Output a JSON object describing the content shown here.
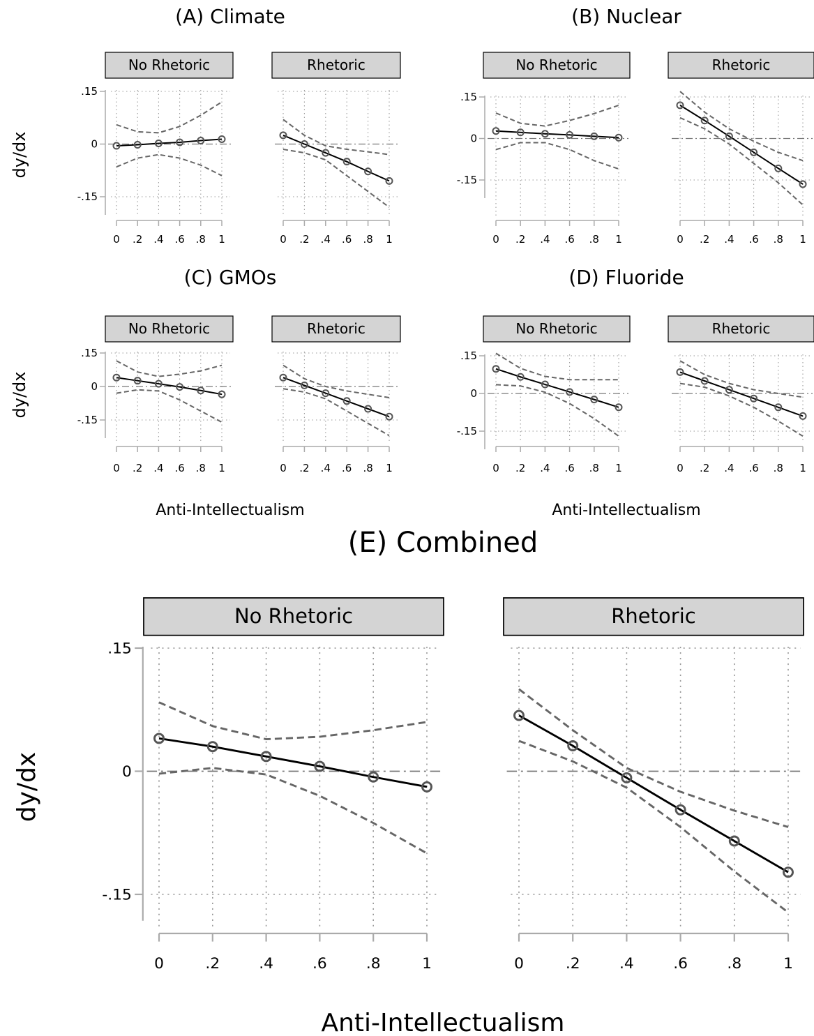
{
  "figure": {
    "panels": [
      {
        "title": "(A) Climate"
      },
      {
        "title": "(B) Nuclear"
      },
      {
        "title": "(C) GMOs"
      },
      {
        "title": "(D) Fluoride"
      },
      {
        "title": "(E) Combined"
      }
    ],
    "ylabel": "dy/dx",
    "xlabel": "Anti-Intellectualism",
    "facet_labels": [
      "No Rhetoric",
      "Rhetoric"
    ],
    "x_tick_labels": [
      "0",
      ".2",
      ".4",
      ".6",
      ".8",
      "1"
    ],
    "y_tick_labels": [
      ".15",
      "0",
      "-.15"
    ]
  },
  "chart_data": [
    {
      "type": "line",
      "title": "(A) Climate",
      "ylabel": "dy/dx",
      "x": [
        0,
        0.2,
        0.4,
        0.6,
        0.8,
        1
      ],
      "ylim": [
        -0.15,
        0.15
      ],
      "facets": [
        {
          "name": "No Rhetoric",
          "estimate": [
            -0.005,
            -0.002,
            0.002,
            0.005,
            0.01,
            0.014
          ],
          "ci_low": [
            -0.065,
            -0.04,
            -0.03,
            -0.04,
            -0.06,
            -0.09
          ],
          "ci_high": [
            0.055,
            0.035,
            0.032,
            0.05,
            0.082,
            0.12
          ]
        },
        {
          "name": "Rhetoric",
          "estimate": [
            0.025,
            0.0,
            -0.025,
            -0.05,
            -0.078,
            -0.105
          ],
          "ci_low": [
            -0.015,
            -0.025,
            -0.045,
            -0.09,
            -0.135,
            -0.18
          ],
          "ci_high": [
            0.07,
            0.025,
            -0.005,
            -0.015,
            -0.022,
            -0.03
          ]
        }
      ]
    },
    {
      "type": "line",
      "title": "(B) Nuclear",
      "ylabel": "dy/dx",
      "x": [
        0,
        0.2,
        0.4,
        0.6,
        0.8,
        1
      ],
      "ylim": [
        -0.15,
        0.15
      ],
      "facets": [
        {
          "name": "No Rhetoric",
          "estimate": [
            0.027,
            0.022,
            0.017,
            0.013,
            0.008,
            0.003
          ],
          "ci_low": [
            -0.04,
            -0.015,
            -0.015,
            -0.04,
            -0.08,
            -0.11
          ],
          "ci_high": [
            0.092,
            0.055,
            0.045,
            0.065,
            0.09,
            0.12
          ]
        },
        {
          "name": "Rhetoric",
          "estimate": [
            0.12,
            0.065,
            0.008,
            -0.05,
            -0.108,
            -0.165
          ],
          "ci_low": [
            0.075,
            0.035,
            -0.02,
            -0.09,
            -0.16,
            -0.24
          ],
          "ci_high": [
            0.17,
            0.095,
            0.035,
            -0.01,
            -0.05,
            -0.08
          ]
        }
      ]
    },
    {
      "type": "line",
      "title": "(C) GMOs",
      "ylabel": "dy/dx",
      "x": [
        0,
        0.2,
        0.4,
        0.6,
        0.8,
        1
      ],
      "ylim": [
        -0.15,
        0.15
      ],
      "facets": [
        {
          "name": "No Rhetoric",
          "estimate": [
            0.04,
            0.026,
            0.012,
            -0.002,
            -0.018,
            -0.035
          ],
          "ci_low": [
            -0.03,
            -0.015,
            -0.02,
            -0.06,
            -0.11,
            -0.16
          ],
          "ci_high": [
            0.115,
            0.065,
            0.045,
            0.055,
            0.07,
            0.095
          ]
        },
        {
          "name": "Rhetoric",
          "estimate": [
            0.04,
            0.005,
            -0.03,
            -0.065,
            -0.1,
            -0.135
          ],
          "ci_low": [
            -0.01,
            -0.025,
            -0.055,
            -0.11,
            -0.165,
            -0.22
          ],
          "ci_high": [
            0.095,
            0.035,
            0.0,
            -0.02,
            -0.035,
            -0.05
          ]
        }
      ]
    },
    {
      "type": "line",
      "title": "(D) Fluoride",
      "ylabel": "dy/dx",
      "x": [
        0,
        0.2,
        0.4,
        0.6,
        0.8,
        1
      ],
      "ylim": [
        -0.15,
        0.15
      ],
      "facets": [
        {
          "name": "No Rhetoric",
          "estimate": [
            0.098,
            0.066,
            0.036,
            0.006,
            -0.024,
            -0.055
          ],
          "ci_low": [
            0.035,
            0.03,
            0.005,
            -0.04,
            -0.1,
            -0.17
          ],
          "ci_high": [
            0.16,
            0.1,
            0.068,
            0.055,
            0.055,
            0.055
          ]
        },
        {
          "name": "Rhetoric",
          "estimate": [
            0.085,
            0.05,
            0.015,
            -0.02,
            -0.055,
            -0.09
          ],
          "ci_low": [
            0.04,
            0.025,
            -0.01,
            -0.055,
            -0.11,
            -0.17
          ],
          "ci_high": [
            0.13,
            0.075,
            0.04,
            0.015,
            0.0,
            -0.015
          ]
        }
      ]
    },
    {
      "type": "line",
      "title": "(E) Combined",
      "ylabel": "dy/dx",
      "xlabel": "Anti-Intellectualism",
      "x": [
        0,
        0.2,
        0.4,
        0.6,
        0.8,
        1
      ],
      "ylim": [
        -0.15,
        0.15
      ],
      "facets": [
        {
          "name": "No Rhetoric",
          "estimate": [
            0.04,
            0.03,
            0.018,
            0.006,
            -0.007,
            -0.019
          ],
          "ci_low": [
            -0.003,
            0.004,
            -0.004,
            -0.03,
            -0.063,
            -0.1
          ],
          "ci_high": [
            0.084,
            0.055,
            0.039,
            0.042,
            0.05,
            0.06
          ]
        },
        {
          "name": "Rhetoric",
          "estimate": [
            0.068,
            0.031,
            -0.008,
            -0.047,
            -0.085,
            -0.123
          ],
          "ci_low": [
            0.037,
            0.012,
            -0.02,
            -0.068,
            -0.122,
            -0.172
          ],
          "ci_high": [
            0.1,
            0.05,
            0.004,
            -0.025,
            -0.048,
            -0.068
          ]
        }
      ]
    }
  ]
}
